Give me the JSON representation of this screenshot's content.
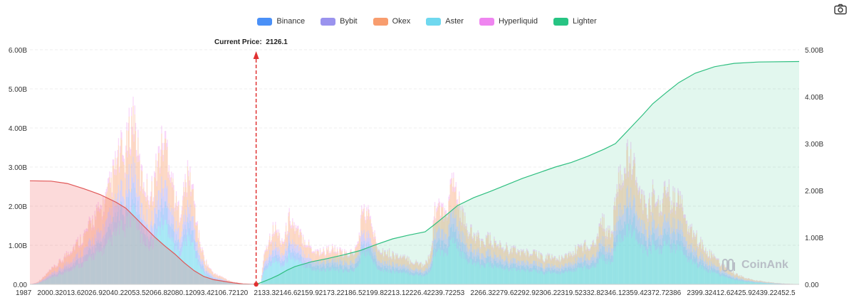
{
  "legend": [
    {
      "name": "Binance",
      "color": "#4a90f7"
    },
    {
      "name": "Bybit",
      "color": "#9a93ee"
    },
    {
      "name": "Okex",
      "color": "#f89d6e"
    },
    {
      "name": "Aster",
      "color": "#6fd8ef"
    },
    {
      "name": "Hyperliquid",
      "color": "#ef85f0"
    },
    {
      "name": "Lighter",
      "color": "#27c483"
    }
  ],
  "current_price": {
    "label": "Current Price:",
    "value": "2126.1"
  },
  "watermark": "CoinAnk",
  "chart_data": {
    "type": "bar",
    "x_ticks": [
      "1987",
      "2000.3",
      "2013.6",
      "2026.9",
      "2040.2",
      "2053.5",
      "2066.8",
      "2080.1",
      "2093.4",
      "2106.7",
      "2120",
      "2133.3",
      "2146.6",
      "2159.9",
      "2173.2",
      "2186.5",
      "2199.8",
      "2213.1",
      "2226.4",
      "2239.7",
      "2253",
      "2266.3",
      "2279.6",
      "2292.9",
      "2306.2",
      "2319.5",
      "2332.8",
      "2346.1",
      "2359.4",
      "2372.7",
      "2386",
      "2399.3",
      "2412.6",
      "2425.9",
      "2439.2",
      "2452.5"
    ],
    "xlim": [
      1987,
      2460
    ],
    "y_left": {
      "ticks": [
        "0.00",
        "1.00B",
        "2.00B",
        "3.00B",
        "4.00B",
        "5.00B",
        "6.00B"
      ],
      "ylim": [
        0,
        6
      ]
    },
    "y_right": {
      "ticks": [
        "0.00",
        "1.00B",
        "2.00B",
        "3.00B",
        "4.00B",
        "5.00B"
      ],
      "ylim": [
        0,
        5
      ]
    },
    "current_price": 2126.1,
    "series_bar_colors": {
      "Binance": "#4a90f7",
      "Bybit": "#9a93ee",
      "Okex": "#f89d6e",
      "Aster": "#6fd8ef",
      "Hyperliquid": "#ef85f0",
      "Lighter": "#27c483"
    },
    "bar_profile": [
      [
        1987,
        0.0
      ],
      [
        1991,
        0.05
      ],
      [
        1995,
        0.2
      ],
      [
        1999,
        0.4
      ],
      [
        2003,
        0.55
      ],
      [
        2007,
        0.75
      ],
      [
        2011,
        1.0
      ],
      [
        2015,
        1.2
      ],
      [
        2019,
        1.4
      ],
      [
        2022,
        1.6
      ],
      [
        2025,
        1.9
      ],
      [
        2028,
        2.1
      ],
      [
        2031,
        2.3
      ],
      [
        2034,
        2.6
      ],
      [
        2037,
        3.1
      ],
      [
        2040,
        3.6
      ],
      [
        2043,
        4.0
      ],
      [
        2045,
        3.7
      ],
      [
        2047,
        4.3
      ],
      [
        2049,
        4.8
      ],
      [
        2051,
        5.2
      ],
      [
        2053,
        4.2
      ],
      [
        2055,
        3.3
      ],
      [
        2057,
        3.1
      ],
      [
        2059,
        2.9
      ],
      [
        2061,
        2.7
      ],
      [
        2063,
        3.0
      ],
      [
        2065,
        3.6
      ],
      [
        2067,
        4.0
      ],
      [
        2069,
        4.3
      ],
      [
        2071,
        4.2
      ],
      [
        2073,
        3.7
      ],
      [
        2075,
        3.0
      ],
      [
        2077,
        2.4
      ],
      [
        2079,
        2.2
      ],
      [
        2081,
        2.6
      ],
      [
        2083,
        3.1
      ],
      [
        2085,
        3.3
      ],
      [
        2087,
        2.9
      ],
      [
        2089,
        2.1
      ],
      [
        2091,
        1.4
      ],
      [
        2093,
        1.0
      ],
      [
        2095,
        0.7
      ],
      [
        2098,
        0.45
      ],
      [
        2101,
        0.3
      ],
      [
        2104,
        0.25
      ],
      [
        2108,
        0.15
      ],
      [
        2112,
        0.08
      ],
      [
        2116,
        0.03
      ],
      [
        2120,
        0.0
      ],
      [
        2126,
        0.0
      ],
      [
        2129,
        0.0
      ],
      [
        2131,
        1.0
      ],
      [
        2133,
        1.2
      ],
      [
        2135,
        1.5
      ],
      [
        2137,
        1.7
      ],
      [
        2139,
        1.6
      ],
      [
        2141,
        1.4
      ],
      [
        2143,
        1.3
      ],
      [
        2145,
        1.7
      ],
      [
        2147,
        2.1
      ],
      [
        2149,
        1.8
      ],
      [
        2151,
        1.6
      ],
      [
        2153,
        1.5
      ],
      [
        2155,
        1.4
      ],
      [
        2157,
        1.3
      ],
      [
        2160,
        1.1
      ],
      [
        2163,
        1.0
      ],
      [
        2166,
        1.0
      ],
      [
        2169,
        1.0
      ],
      [
        2172,
        1.1
      ],
      [
        2175,
        1.0
      ],
      [
        2178,
        0.95
      ],
      [
        2181,
        0.9
      ],
      [
        2184,
        0.95
      ],
      [
        2187,
        1.0
      ],
      [
        2189,
        1.3
      ],
      [
        2191,
        2.1
      ],
      [
        2193,
        2.2
      ],
      [
        2195,
        2.1
      ],
      [
        2197,
        1.9
      ],
      [
        2199,
        1.4
      ],
      [
        2201,
        1.2
      ],
      [
        2204,
        1.0
      ],
      [
        2207,
        0.95
      ],
      [
        2210,
        0.9
      ],
      [
        2213,
        0.85
      ],
      [
        2216,
        0.8
      ],
      [
        2219,
        0.75
      ],
      [
        2222,
        0.7
      ],
      [
        2225,
        0.65
      ],
      [
        2228,
        0.6
      ],
      [
        2231,
        0.7
      ],
      [
        2234,
        1.0
      ],
      [
        2236,
        2.3
      ],
      [
        2238,
        2.4
      ],
      [
        2240,
        2.2
      ],
      [
        2242,
        2.0
      ],
      [
        2244,
        2.4
      ],
      [
        2246,
        2.9
      ],
      [
        2248,
        3.0
      ],
      [
        2250,
        2.6
      ],
      [
        2252,
        2.2
      ],
      [
        2254,
        1.9
      ],
      [
        2256,
        1.7
      ],
      [
        2259,
        1.5
      ],
      [
        2262,
        1.4
      ],
      [
        2265,
        1.3
      ],
      [
        2268,
        1.4
      ],
      [
        2271,
        1.3
      ],
      [
        2274,
        1.2
      ],
      [
        2277,
        1.15
      ],
      [
        2280,
        1.1
      ],
      [
        2283,
        1.05
      ],
      [
        2286,
        1.0
      ],
      [
        2289,
        1.0
      ],
      [
        2292,
        0.95
      ],
      [
        2295,
        0.9
      ],
      [
        2298,
        0.9
      ],
      [
        2301,
        0.85
      ],
      [
        2304,
        0.8
      ],
      [
        2307,
        0.85
      ],
      [
        2310,
        0.8
      ],
      [
        2313,
        0.75
      ],
      [
        2316,
        0.8
      ],
      [
        2319,
        0.9
      ],
      [
        2322,
        1.0
      ],
      [
        2325,
        1.1
      ],
      [
        2328,
        1.2
      ],
      [
        2331,
        1.1
      ],
      [
        2334,
        1.3
      ],
      [
        2337,
        1.6
      ],
      [
        2339,
        2.0
      ],
      [
        2341,
        1.7
      ],
      [
        2343,
        1.5
      ],
      [
        2345,
        1.6
      ],
      [
        2347,
        2.6
      ],
      [
        2349,
        3.2
      ],
      [
        2351,
        3.0
      ],
      [
        2353,
        3.5
      ],
      [
        2355,
        3.9
      ],
      [
        2357,
        3.6
      ],
      [
        2359,
        3.4
      ],
      [
        2361,
        3.0
      ],
      [
        2363,
        2.7
      ],
      [
        2365,
        2.4
      ],
      [
        2367,
        2.2
      ],
      [
        2369,
        2.5
      ],
      [
        2371,
        2.9
      ],
      [
        2373,
        2.6
      ],
      [
        2375,
        2.4
      ],
      [
        2377,
        2.7
      ],
      [
        2379,
        2.8
      ],
      [
        2381,
        2.6
      ],
      [
        2383,
        2.5
      ],
      [
        2385,
        2.6
      ],
      [
        2387,
        2.4
      ],
      [
        2389,
        2.2
      ],
      [
        2391,
        1.9
      ],
      [
        2393,
        1.7
      ],
      [
        2395,
        1.5
      ],
      [
        2397,
        1.4
      ],
      [
        2400,
        1.2
      ],
      [
        2403,
        1.0
      ],
      [
        2406,
        0.9
      ],
      [
        2409,
        0.75
      ],
      [
        2412,
        0.6
      ],
      [
        2415,
        0.5
      ],
      [
        2418,
        0.4
      ],
      [
        2421,
        0.3
      ],
      [
        2424,
        0.25
      ],
      [
        2427,
        0.2
      ],
      [
        2430,
        0.15
      ],
      [
        2433,
        0.12
      ],
      [
        2436,
        0.1
      ],
      [
        2440,
        0.07
      ],
      [
        2444,
        0.05
      ],
      [
        2448,
        0.03
      ],
      [
        2452,
        0.02
      ],
      [
        2457,
        0.01
      ]
    ],
    "cumulative_short_left": [
      [
        1987,
        2.65
      ],
      [
        2000,
        2.64
      ],
      [
        2010,
        2.58
      ],
      [
        2020,
        2.45
      ],
      [
        2030,
        2.3
      ],
      [
        2040,
        2.1
      ],
      [
        2046,
        1.95
      ],
      [
        2052,
        1.7
      ],
      [
        2058,
        1.45
      ],
      [
        2064,
        1.2
      ],
      [
        2070,
        0.98
      ],
      [
        2076,
        0.78
      ],
      [
        2082,
        0.55
      ],
      [
        2088,
        0.35
      ],
      [
        2094,
        0.2
      ],
      [
        2100,
        0.12
      ],
      [
        2106,
        0.08
      ],
      [
        2112,
        0.04
      ],
      [
        2118,
        0.01
      ],
      [
        2126.1,
        0.0
      ]
    ],
    "cumulative_long_right": [
      [
        2126.1,
        0.0
      ],
      [
        2130,
        0.05
      ],
      [
        2135,
        0.12
      ],
      [
        2140,
        0.2
      ],
      [
        2145,
        0.3
      ],
      [
        2150,
        0.38
      ],
      [
        2160,
        0.48
      ],
      [
        2170,
        0.55
      ],
      [
        2180,
        0.63
      ],
      [
        2190,
        0.72
      ],
      [
        2200,
        0.85
      ],
      [
        2210,
        0.97
      ],
      [
        2220,
        1.05
      ],
      [
        2230,
        1.12
      ],
      [
        2236,
        1.28
      ],
      [
        2242,
        1.45
      ],
      [
        2250,
        1.68
      ],
      [
        2260,
        1.85
      ],
      [
        2270,
        1.98
      ],
      [
        2280,
        2.12
      ],
      [
        2290,
        2.26
      ],
      [
        2300,
        2.38
      ],
      [
        2310,
        2.5
      ],
      [
        2320,
        2.6
      ],
      [
        2330,
        2.73
      ],
      [
        2340,
        2.88
      ],
      [
        2347,
        3.0
      ],
      [
        2352,
        3.18
      ],
      [
        2358,
        3.4
      ],
      [
        2364,
        3.62
      ],
      [
        2370,
        3.85
      ],
      [
        2378,
        4.08
      ],
      [
        2386,
        4.3
      ],
      [
        2396,
        4.5
      ],
      [
        2408,
        4.64
      ],
      [
        2420,
        4.71
      ],
      [
        2435,
        4.74
      ],
      [
        2460,
        4.75
      ]
    ]
  }
}
